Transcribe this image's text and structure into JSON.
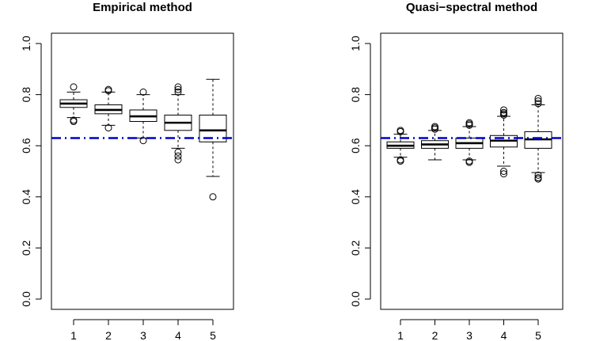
{
  "chart_data": [
    {
      "type": "boxplot",
      "title": "Empirical method",
      "categories": [
        "1",
        "2",
        "3",
        "4",
        "5"
      ],
      "ylim": [
        0.0,
        1.0
      ],
      "yticks": [
        "0.0",
        "0.2",
        "0.4",
        "0.6",
        "0.8",
        "1.0"
      ],
      "reference_line": {
        "y": 0.63,
        "style": "dash-dot",
        "color": "#0000cc"
      },
      "boxes": [
        {
          "category": "1",
          "whisker_low": 0.71,
          "q1": 0.75,
          "median": 0.765,
          "q3": 0.78,
          "whisker_high": 0.81,
          "outliers": [
            0.83,
            0.7,
            0.695
          ]
        },
        {
          "category": "2",
          "whisker_low": 0.68,
          "q1": 0.725,
          "median": 0.74,
          "q3": 0.76,
          "whisker_high": 0.81,
          "outliers": [
            0.82,
            0.815,
            0.67
          ]
        },
        {
          "category": "3",
          "whisker_low": 0.63,
          "q1": 0.695,
          "median": 0.715,
          "q3": 0.74,
          "whisker_high": 0.8,
          "outliers": [
            0.81,
            0.62
          ]
        },
        {
          "category": "4",
          "whisker_low": 0.59,
          "q1": 0.66,
          "median": 0.69,
          "q3": 0.72,
          "whisker_high": 0.8,
          "outliers": [
            0.83,
            0.82,
            0.81,
            0.575,
            0.56,
            0.545
          ]
        },
        {
          "category": "5",
          "whisker_low": 0.48,
          "q1": 0.615,
          "median": 0.66,
          "q3": 0.72,
          "whisker_high": 0.86,
          "outliers": [
            0.4
          ]
        }
      ]
    },
    {
      "type": "boxplot",
      "title": "Quasi−spectral method",
      "categories": [
        "1",
        "2",
        "3",
        "4",
        "5"
      ],
      "ylim": [
        0.0,
        1.0
      ],
      "yticks": [
        "0.0",
        "0.2",
        "0.4",
        "0.6",
        "0.8",
        "1.0"
      ],
      "reference_line": {
        "y": 0.63,
        "style": "dash-dot",
        "color": "#0000cc"
      },
      "boxes": [
        {
          "category": "1",
          "whisker_low": 0.555,
          "q1": 0.59,
          "median": 0.6,
          "q3": 0.615,
          "whisker_high": 0.645,
          "outliers": [
            0.66,
            0.655,
            0.545,
            0.54
          ]
        },
        {
          "category": "2",
          "whisker_low": 0.545,
          "q1": 0.59,
          "median": 0.605,
          "q3": 0.62,
          "whisker_high": 0.66,
          "outliers": [
            0.675,
            0.67,
            0.665
          ]
        },
        {
          "category": "3",
          "whisker_low": 0.545,
          "q1": 0.59,
          "median": 0.61,
          "q3": 0.63,
          "whisker_high": 0.675,
          "outliers": [
            0.69,
            0.685,
            0.68,
            0.54,
            0.535
          ]
        },
        {
          "category": "4",
          "whisker_low": 0.52,
          "q1": 0.595,
          "median": 0.62,
          "q3": 0.64,
          "whisker_high": 0.715,
          "outliers": [
            0.74,
            0.73,
            0.725,
            0.72,
            0.5,
            0.49
          ]
        },
        {
          "category": "5",
          "whisker_low": 0.495,
          "q1": 0.59,
          "median": 0.625,
          "q3": 0.655,
          "whisker_high": 0.76,
          "outliers": [
            0.785,
            0.775,
            0.765,
            0.485,
            0.475,
            0.47
          ]
        }
      ]
    }
  ]
}
